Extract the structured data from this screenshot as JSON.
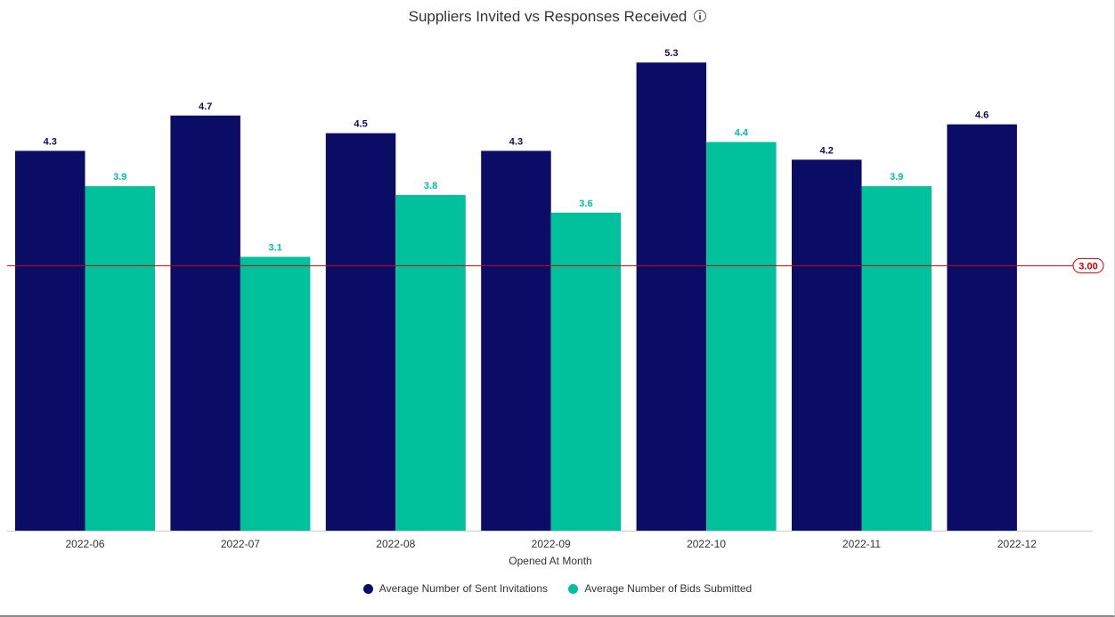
{
  "chart_data": {
    "type": "bar",
    "title": "Suppliers Invited vs Responses Received",
    "xlabel": "Opened At Month",
    "ylabel": "",
    "categories": [
      "2022-06",
      "2022-07",
      "2022-08",
      "2022-09",
      "2022-10",
      "2022-11",
      "2022-12"
    ],
    "series": [
      {
        "name": "Average Number of Sent Invitations",
        "color": "#0b0c66",
        "values": [
          4.3,
          4.7,
          4.5,
          4.3,
          5.3,
          4.2,
          4.6
        ],
        "labels": [
          "4.3",
          "4.7",
          "4.5",
          "4.3",
          "5.3",
          "4.2",
          "4.6"
        ]
      },
      {
        "name": "Average Number of Bids Submitted",
        "color": "#00c19c",
        "values": [
          3.9,
          3.1,
          3.8,
          3.6,
          4.4,
          3.9,
          null
        ],
        "labels": [
          "3.9",
          "3.1",
          "3.8",
          "3.6",
          "4.4",
          "3.9",
          ""
        ]
      }
    ],
    "ylim": [
      0,
      6.05
    ],
    "reference_line": {
      "value": 3.0,
      "label": "3.00",
      "color": "#d40000"
    },
    "grid": false,
    "legend_position": "bottom"
  }
}
